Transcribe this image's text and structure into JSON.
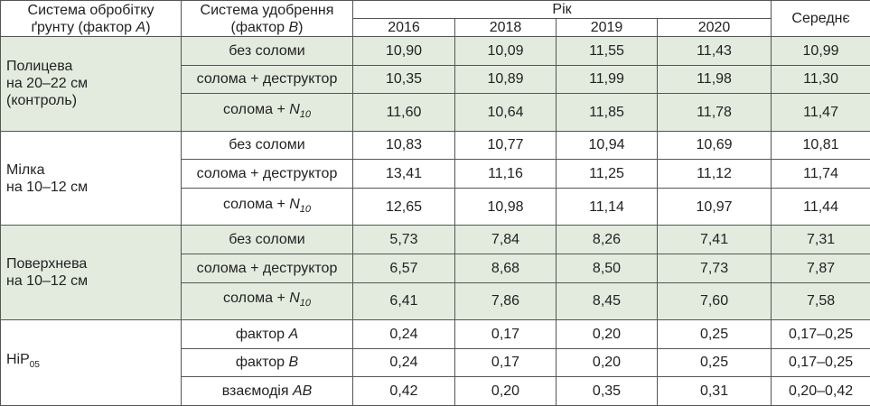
{
  "header": {
    "col_a": [
      {
        "text": "Система обробітку ґрунту (фактор "
      },
      {
        "text": "A",
        "style": "italic"
      },
      {
        "text": ")"
      }
    ],
    "col_b": [
      {
        "text": "Система удобрення (фактор "
      },
      {
        "text": "B",
        "style": "italic"
      },
      {
        "text": ")"
      }
    ],
    "year_group": "Рік",
    "years": [
      "2016",
      "2018",
      "2019",
      "2020"
    ],
    "mean": "Середнє"
  },
  "groups": [
    {
      "label": [
        [
          {
            "text": "Полицева"
          }
        ],
        [
          {
            "text": "на 20–22 см"
          }
        ],
        [
          {
            "text": "(контроль)"
          }
        ]
      ],
      "shaded": true,
      "rows": [
        {
          "b": [
            {
              "text": "без соломи"
            }
          ],
          "values": [
            "10,90",
            "10,09",
            "11,55",
            "11,43",
            "10,99"
          ]
        },
        {
          "b": [
            {
              "text": "солома + деструктор"
            }
          ],
          "values": [
            "10,35",
            "10,89",
            "11,99",
            "11,98",
            "11,30"
          ]
        },
        {
          "b": [
            {
              "text": "солома + "
            },
            {
              "text": "N",
              "style": "italic"
            },
            {
              "text": "10",
              "style": "italic-sub"
            }
          ],
          "values": [
            "11,60",
            "10,64",
            "11,85",
            "11,78",
            "11,47"
          ]
        }
      ]
    },
    {
      "label": [
        [
          {
            "text": "Мілка"
          }
        ],
        [
          {
            "text": "на 10–12 см"
          }
        ]
      ],
      "shaded": false,
      "rows": [
        {
          "b": [
            {
              "text": "без соломи"
            }
          ],
          "values": [
            "10,83",
            "10,77",
            "10,94",
            "10,69",
            "10,81"
          ]
        },
        {
          "b": [
            {
              "text": "солома + деструктор"
            }
          ],
          "values": [
            "13,41",
            "11,16",
            "11,25",
            "11,12",
            "11,74"
          ]
        },
        {
          "b": [
            {
              "text": "солома + "
            },
            {
              "text": "N",
              "style": "italic"
            },
            {
              "text": "10",
              "style": "italic-sub"
            }
          ],
          "values": [
            "12,65",
            "10,98",
            "11,14",
            "10,97",
            "11,44"
          ]
        }
      ]
    },
    {
      "label": [
        [
          {
            "text": "Поверхнева"
          }
        ],
        [
          {
            "text": "на 10–12 см"
          }
        ]
      ],
      "shaded": true,
      "rows": [
        {
          "b": [
            {
              "text": "без соломи"
            }
          ],
          "values": [
            "5,73",
            "7,84",
            "8,26",
            "7,41",
            "7,31"
          ]
        },
        {
          "b": [
            {
              "text": "солома + деструктор"
            }
          ],
          "values": [
            "6,57",
            "8,68",
            "8,50",
            "7,73",
            "7,87"
          ]
        },
        {
          "b": [
            {
              "text": "солома + "
            },
            {
              "text": "N",
              "style": "italic"
            },
            {
              "text": "10",
              "style": "italic-sub"
            }
          ],
          "values": [
            "6,41",
            "7,86",
            "8,45",
            "7,60",
            "7,58"
          ]
        }
      ]
    },
    {
      "label": [
        [
          {
            "text": "HiP"
          },
          {
            "text": "05",
            "style": "sub"
          }
        ]
      ],
      "shaded": false,
      "rows": [
        {
          "b": [
            {
              "text": "фактор "
            },
            {
              "text": "A",
              "style": "italic"
            }
          ],
          "values": [
            "0,24",
            "0,17",
            "0,20",
            "0,25",
            "0,17–0,25"
          ]
        },
        {
          "b": [
            {
              "text": "фактор "
            },
            {
              "text": "B",
              "style": "italic"
            }
          ],
          "values": [
            "0,24",
            "0,17",
            "0,20",
            "0,25",
            "0,17–0,25"
          ]
        },
        {
          "b": [
            {
              "text": "взаємодія "
            },
            {
              "text": "AB",
              "style": "italic"
            }
          ],
          "values": [
            "0,42",
            "0,20",
            "0,35",
            "0,31",
            "0,20–0,42"
          ]
        }
      ]
    }
  ]
}
